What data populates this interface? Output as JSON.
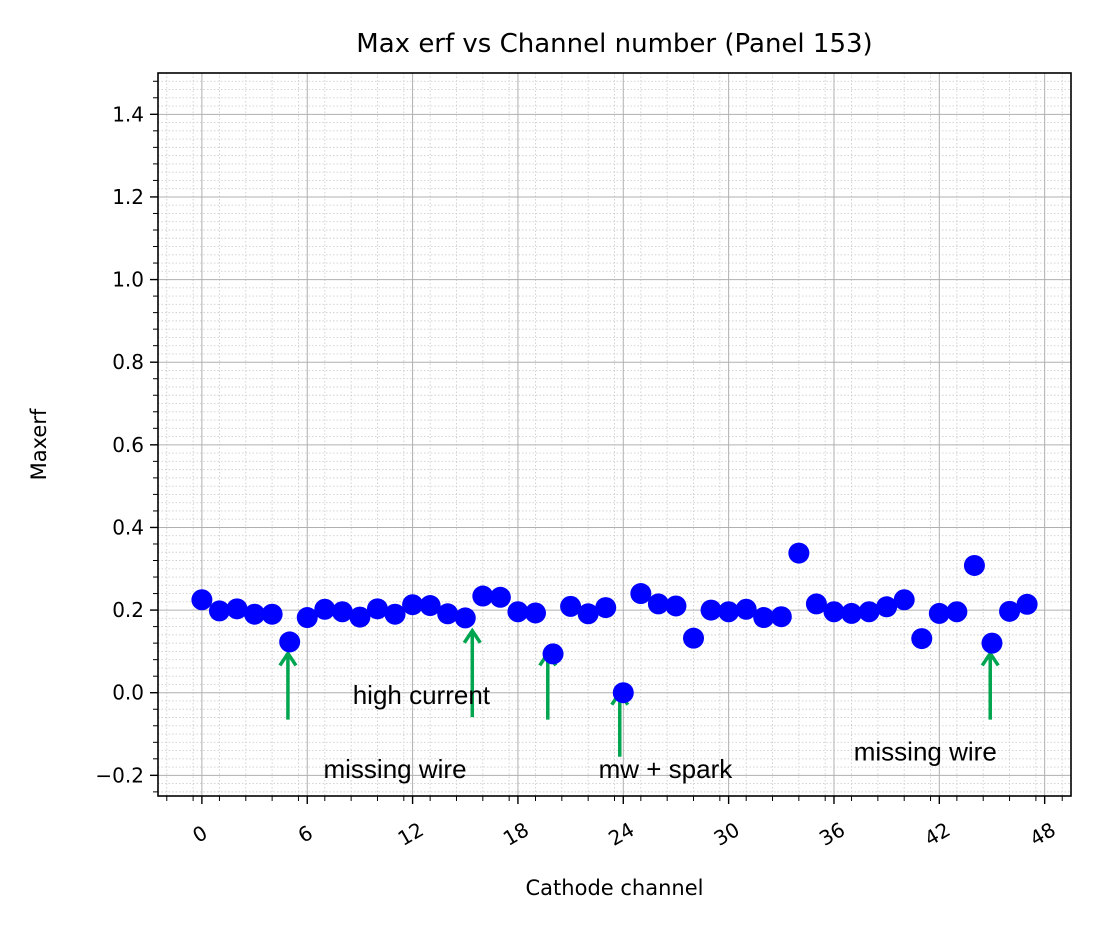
{
  "chart_data": {
    "type": "scatter",
    "title": "Max erf vs Channel number (Panel 153)",
    "xlabel": "Cathode channel",
    "ylabel": "Maxerf",
    "xlim": [
      -2.5,
      49.5
    ],
    "ylim": [
      -0.25,
      1.5
    ],
    "xticks": [
      0,
      6,
      12,
      18,
      24,
      30,
      36,
      42,
      48
    ],
    "xtick_labels": [
      "0",
      "6",
      "12",
      "18",
      "24",
      "30",
      "36",
      "42",
      "48"
    ],
    "yticks": [
      -0.2,
      0.0,
      0.2,
      0.4,
      0.6,
      0.8,
      1.0,
      1.2,
      1.4
    ],
    "ytick_labels": [
      "−0.2",
      "0.0",
      "0.2",
      "0.4",
      "0.6",
      "0.8",
      "1.0",
      "1.2",
      "1.4"
    ],
    "grid": true,
    "minor_grid": true,
    "marker_color": "#0000ff",
    "arrow_color": "#00a550",
    "series": [
      {
        "x": [
          0,
          1,
          2,
          3,
          4,
          5,
          6,
          7,
          8,
          9,
          10,
          11,
          12,
          13,
          14,
          15,
          16,
          17,
          18,
          19,
          20,
          21,
          22,
          23,
          24,
          25,
          26,
          27,
          28,
          29,
          30,
          31,
          32,
          33,
          34,
          35,
          36,
          37,
          38,
          39,
          40,
          41,
          42,
          43,
          44,
          45,
          46,
          47
        ],
        "values": [
          0.225,
          0.198,
          0.203,
          0.19,
          0.19,
          0.123,
          0.182,
          0.202,
          0.196,
          0.183,
          0.203,
          0.19,
          0.213,
          0.211,
          0.191,
          0.181,
          0.234,
          0.231,
          0.196,
          0.193,
          0.094,
          0.209,
          0.191,
          0.206,
          0.0,
          0.24,
          0.215,
          0.21,
          0.132,
          0.2,
          0.196,
          0.202,
          0.182,
          0.184,
          0.338,
          0.215,
          0.196,
          0.192,
          0.196,
          0.208,
          0.225,
          0.131,
          0.192,
          0.196,
          0.308,
          0.12,
          0.197,
          0.214
        ]
      }
    ],
    "annotations": [
      {
        "text": "missing wire",
        "arrow_x": 4.9,
        "arrow_y0": -0.065,
        "arrow_y1": 0.095,
        "text_x": 11,
        "text_y": -0.185
      },
      {
        "text": "high current",
        "arrow_x": 15.4,
        "arrow_y0": -0.059,
        "arrow_y1": 0.15,
        "text_x": 12.5,
        "text_y": -0.005
      },
      {
        "text": "",
        "arrow_x": 19.7,
        "arrow_y0": -0.065,
        "arrow_y1": 0.095,
        "text_x": 0,
        "text_y": 0
      },
      {
        "text": "mw + spark",
        "arrow_x": 23.8,
        "arrow_y0": -0.155,
        "arrow_y1": 0.0,
        "text_x": 26.4,
        "text_y": -0.185
      },
      {
        "text": "missing wire",
        "arrow_x": 44.9,
        "arrow_y0": -0.065,
        "arrow_y1": 0.095,
        "text_x": 41.2,
        "text_y": -0.142
      }
    ]
  }
}
